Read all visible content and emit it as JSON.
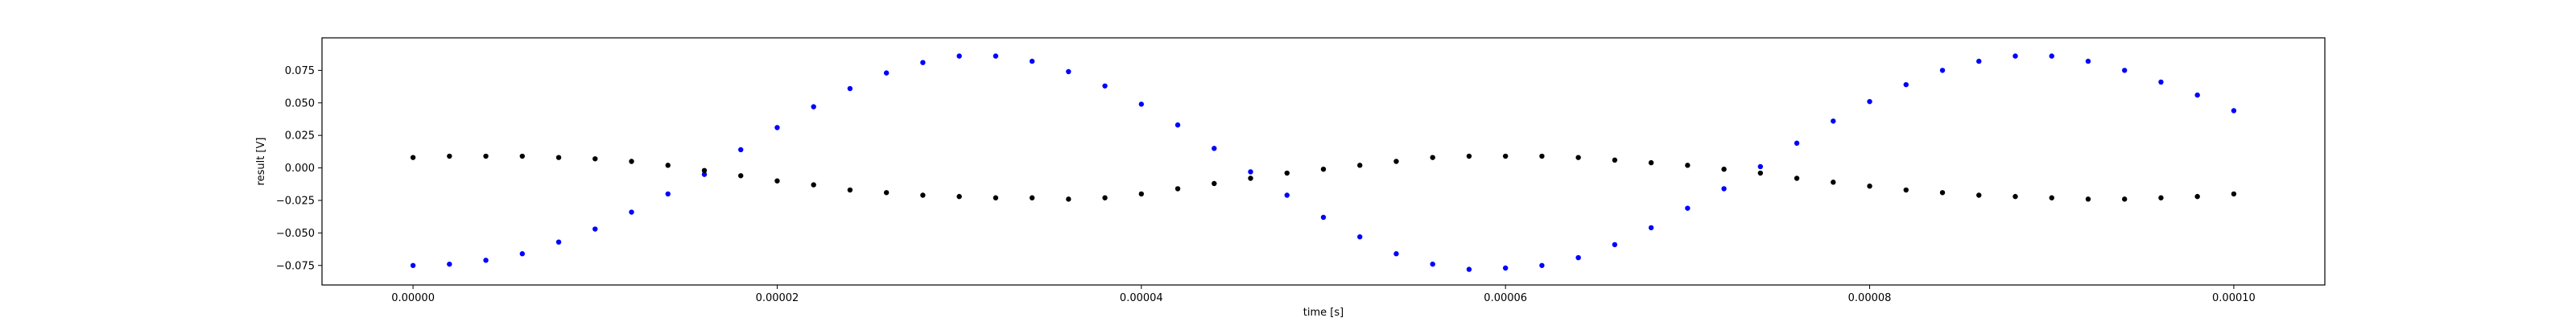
{
  "chart_data": {
    "type": "scatter",
    "title": "",
    "xlabel": "time [s]",
    "ylabel": "result [V]",
    "xlim": [
      -5e-06,
      0.000105
    ],
    "ylim": [
      -0.09,
      0.1
    ],
    "x_ticks": [
      {
        "value": 0.0,
        "label": "0.00000"
      },
      {
        "value": 2e-05,
        "label": "0.00002"
      },
      {
        "value": 4e-05,
        "label": "0.00004"
      },
      {
        "value": 6e-05,
        "label": "0.00006"
      },
      {
        "value": 8e-05,
        "label": "0.00008"
      },
      {
        "value": 0.0001,
        "label": "0.00010"
      }
    ],
    "y_ticks": [
      {
        "value": -0.075,
        "label": "−0.075"
      },
      {
        "value": -0.05,
        "label": "−0.050"
      },
      {
        "value": -0.025,
        "label": "−0.025"
      },
      {
        "value": 0.0,
        "label": "0.000"
      },
      {
        "value": 0.025,
        "label": "0.025"
      },
      {
        "value": 0.05,
        "label": "0.050"
      },
      {
        "value": 0.075,
        "label": "0.075"
      }
    ],
    "grid": false,
    "legend": "none",
    "series": [
      {
        "color": "#0000ff",
        "marker": "dot",
        "x": [
          0.0,
          2e-06,
          4e-06,
          6e-06,
          8e-06,
          1e-05,
          1.2e-05,
          1.4e-05,
          1.6e-05,
          1.8e-05,
          2e-05,
          2.2e-05,
          2.4e-05,
          2.6e-05,
          2.8e-05,
          3e-05,
          3.2e-05,
          3.4e-05,
          3.6e-05,
          3.8e-05,
          4e-05,
          4.2e-05,
          4.4e-05,
          4.6e-05,
          4.8e-05,
          5e-05,
          5.2e-05,
          5.4e-05,
          5.6e-05,
          5.8e-05,
          6e-05,
          6.2e-05,
          6.4e-05,
          6.6e-05,
          6.8e-05,
          7e-05,
          7.2e-05,
          7.4e-05,
          7.6e-05,
          7.8e-05,
          8e-05,
          8.2e-05,
          8.4e-05,
          8.6e-05,
          8.8e-05,
          9e-05,
          9.2e-05,
          9.4e-05,
          9.6e-05,
          9.8e-05,
          0.0001
        ],
        "y": [
          -0.075,
          -0.074,
          -0.071,
          -0.066,
          -0.057,
          -0.047,
          -0.034,
          -0.02,
          -0.005,
          0.014,
          0.031,
          0.047,
          0.061,
          0.073,
          0.081,
          0.086,
          0.086,
          0.082,
          0.074,
          0.063,
          0.049,
          0.033,
          0.015,
          -0.003,
          -0.021,
          -0.038,
          -0.053,
          -0.066,
          -0.074,
          -0.078,
          -0.077,
          -0.075,
          -0.069,
          -0.059,
          -0.046,
          -0.031,
          -0.016,
          0.001,
          0.019,
          0.036,
          0.051,
          0.064,
          0.075,
          0.082,
          0.086,
          0.086,
          0.082,
          0.075,
          0.066,
          0.056,
          0.044
        ]
      },
      {
        "color": "#000000",
        "marker": "dot",
        "x": [
          0.0,
          2e-06,
          4e-06,
          6e-06,
          8e-06,
          1e-05,
          1.2e-05,
          1.4e-05,
          1.6e-05,
          1.8e-05,
          2e-05,
          2.2e-05,
          2.4e-05,
          2.6e-05,
          2.8e-05,
          3e-05,
          3.2e-05,
          3.4e-05,
          3.6e-05,
          3.8e-05,
          4e-05,
          4.2e-05,
          4.4e-05,
          4.6e-05,
          4.8e-05,
          5e-05,
          5.2e-05,
          5.4e-05,
          5.6e-05,
          5.8e-05,
          6e-05,
          6.2e-05,
          6.4e-05,
          6.6e-05,
          6.8e-05,
          7e-05,
          7.2e-05,
          7.4e-05,
          7.6e-05,
          7.8e-05,
          8e-05,
          8.2e-05,
          8.4e-05,
          8.6e-05,
          8.8e-05,
          9e-05,
          9.2e-05,
          9.4e-05,
          9.6e-05,
          9.8e-05,
          0.0001
        ],
        "y": [
          0.008,
          0.009,
          0.009,
          0.009,
          0.008,
          0.007,
          0.005,
          0.002,
          -0.002,
          -0.006,
          -0.01,
          -0.013,
          -0.017,
          -0.019,
          -0.021,
          -0.022,
          -0.023,
          -0.023,
          -0.024,
          -0.023,
          -0.02,
          -0.016,
          -0.012,
          -0.008,
          -0.004,
          -0.001,
          0.002,
          0.005,
          0.008,
          0.009,
          0.009,
          0.009,
          0.008,
          0.006,
          0.004,
          0.002,
          -0.001,
          -0.004,
          -0.008,
          -0.011,
          -0.014,
          -0.017,
          -0.019,
          -0.021,
          -0.022,
          -0.023,
          -0.024,
          -0.024,
          -0.023,
          -0.022,
          -0.02
        ]
      }
    ]
  }
}
